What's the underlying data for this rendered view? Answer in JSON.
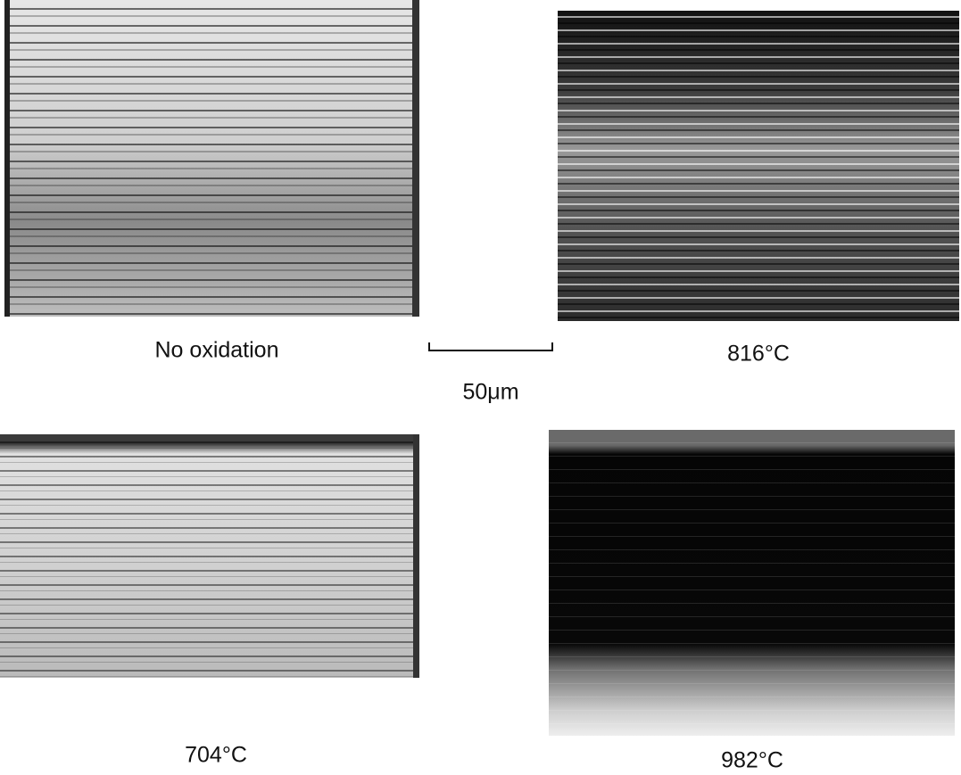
{
  "panels": [
    {
      "label": "No oxidation"
    },
    {
      "label": "816°C"
    },
    {
      "label": "704°C"
    },
    {
      "label": "982°C"
    }
  ],
  "scale_bar": {
    "label": "50μm"
  }
}
